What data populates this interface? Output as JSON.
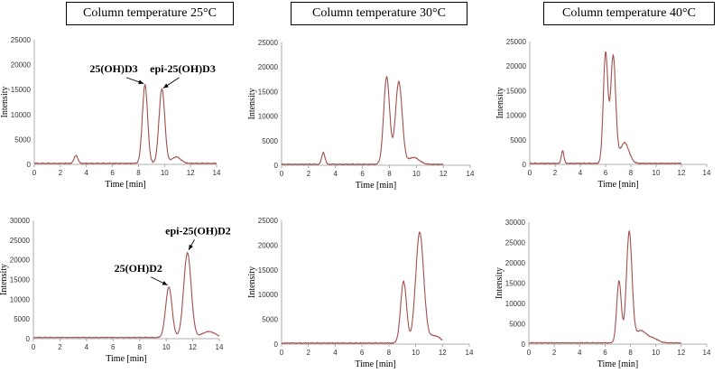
{
  "column_headers": [
    "Column temperature 25°C",
    "Column temperature 30°C",
    "Column temperature 40°C"
  ],
  "colors": {
    "trace": "#a0504e",
    "axis": "#999999"
  },
  "chart_data": [
    {
      "type": "line",
      "header": "Column temperature 25°C",
      "xlabel": "Time [min]",
      "ylabel": "Intensity",
      "xlim": [
        0,
        14
      ],
      "ylim": [
        0,
        25000
      ],
      "xstep": 2,
      "ystep": 5000,
      "peaks": [
        [
          3.2,
          1600,
          0.14
        ],
        [
          8.5,
          15800,
          0.2
        ],
        [
          9.8,
          15000,
          0.22
        ],
        [
          10.9,
          1300,
          0.35
        ]
      ],
      "baseline": 200,
      "end": 14,
      "annotations": [
        {
          "text": "25(OH)D3",
          "x": 6.1,
          "y": 18500,
          "tx": 8.4,
          "ty": 16200
        },
        {
          "text": "epi-25(OH)D3",
          "x": 11.4,
          "y": 18500,
          "tx": 9.9,
          "ty": 15300
        }
      ]
    },
    {
      "type": "line",
      "header": "Column temperature 30°C",
      "xlabel": "Time [min]",
      "ylabel": "Intensity",
      "xlim": [
        0,
        14
      ],
      "ylim": [
        0,
        25000
      ],
      "xstep": 2,
      "ystep": 5000,
      "peaks": [
        [
          3.1,
          2400,
          0.12
        ],
        [
          7.8,
          17800,
          0.22
        ],
        [
          8.7,
          16800,
          0.25
        ],
        [
          9.8,
          1400,
          0.4
        ]
      ],
      "baseline": 200,
      "end": 12,
      "annotations": []
    },
    {
      "type": "line",
      "header": "Column temperature 40°C",
      "xlabel": "Time [min]",
      "ylabel": "Intensity",
      "xlim": [
        0,
        14
      ],
      "ylim": [
        0,
        25000
      ],
      "xstep": 2,
      "ystep": 5000,
      "peaks": [
        [
          2.6,
          2600,
          0.1
        ],
        [
          6.0,
          22500,
          0.18
        ],
        [
          6.6,
          21800,
          0.2
        ],
        [
          7.5,
          4200,
          0.35
        ]
      ],
      "baseline": 200,
      "end": 12,
      "annotations": []
    },
    {
      "type": "line",
      "xlabel": "Time [min]",
      "ylabel": "Intensity",
      "xlim": [
        0,
        14
      ],
      "ylim": [
        0,
        30000
      ],
      "xstep": 2,
      "ystep": 5000,
      "peaks": [
        [
          10.2,
          12800,
          0.24
        ],
        [
          11.6,
          21500,
          0.28
        ],
        [
          13.2,
          1500,
          0.5
        ]
      ],
      "baseline": 300,
      "end": 14,
      "annotations": [
        {
          "text": "25(OH)D2",
          "x": 7.9,
          "y": 17000,
          "tx": 10.1,
          "ty": 13600
        },
        {
          "text": "epi-25(OH)D2",
          "x": 12.4,
          "y": 26500,
          "tx": 11.7,
          "ty": 22500
        }
      ]
    },
    {
      "type": "line",
      "xlabel": "Time [min]",
      "ylabel": "Intensity",
      "xlim": [
        0,
        14
      ],
      "ylim": [
        0,
        25000
      ],
      "xstep": 2,
      "ystep": 5000,
      "peaks": [
        [
          9.1,
          12500,
          0.22
        ],
        [
          10.3,
          22300,
          0.3
        ],
        [
          11.4,
          1500,
          0.45
        ]
      ],
      "baseline": 200,
      "end": 12,
      "annotations": []
    },
    {
      "type": "line",
      "xlabel": "Time [min]",
      "ylabel": "Intensity",
      "xlim": [
        0,
        14
      ],
      "ylim": [
        0,
        30000
      ],
      "xstep": 2,
      "ystep": 5000,
      "peaks": [
        [
          7.1,
          15200,
          0.18
        ],
        [
          7.9,
          27000,
          0.22
        ],
        [
          8.8,
          3000,
          0.45
        ],
        [
          9.8,
          1000,
          0.4
        ]
      ],
      "baseline": 300,
      "end": 12,
      "annotations": []
    }
  ]
}
